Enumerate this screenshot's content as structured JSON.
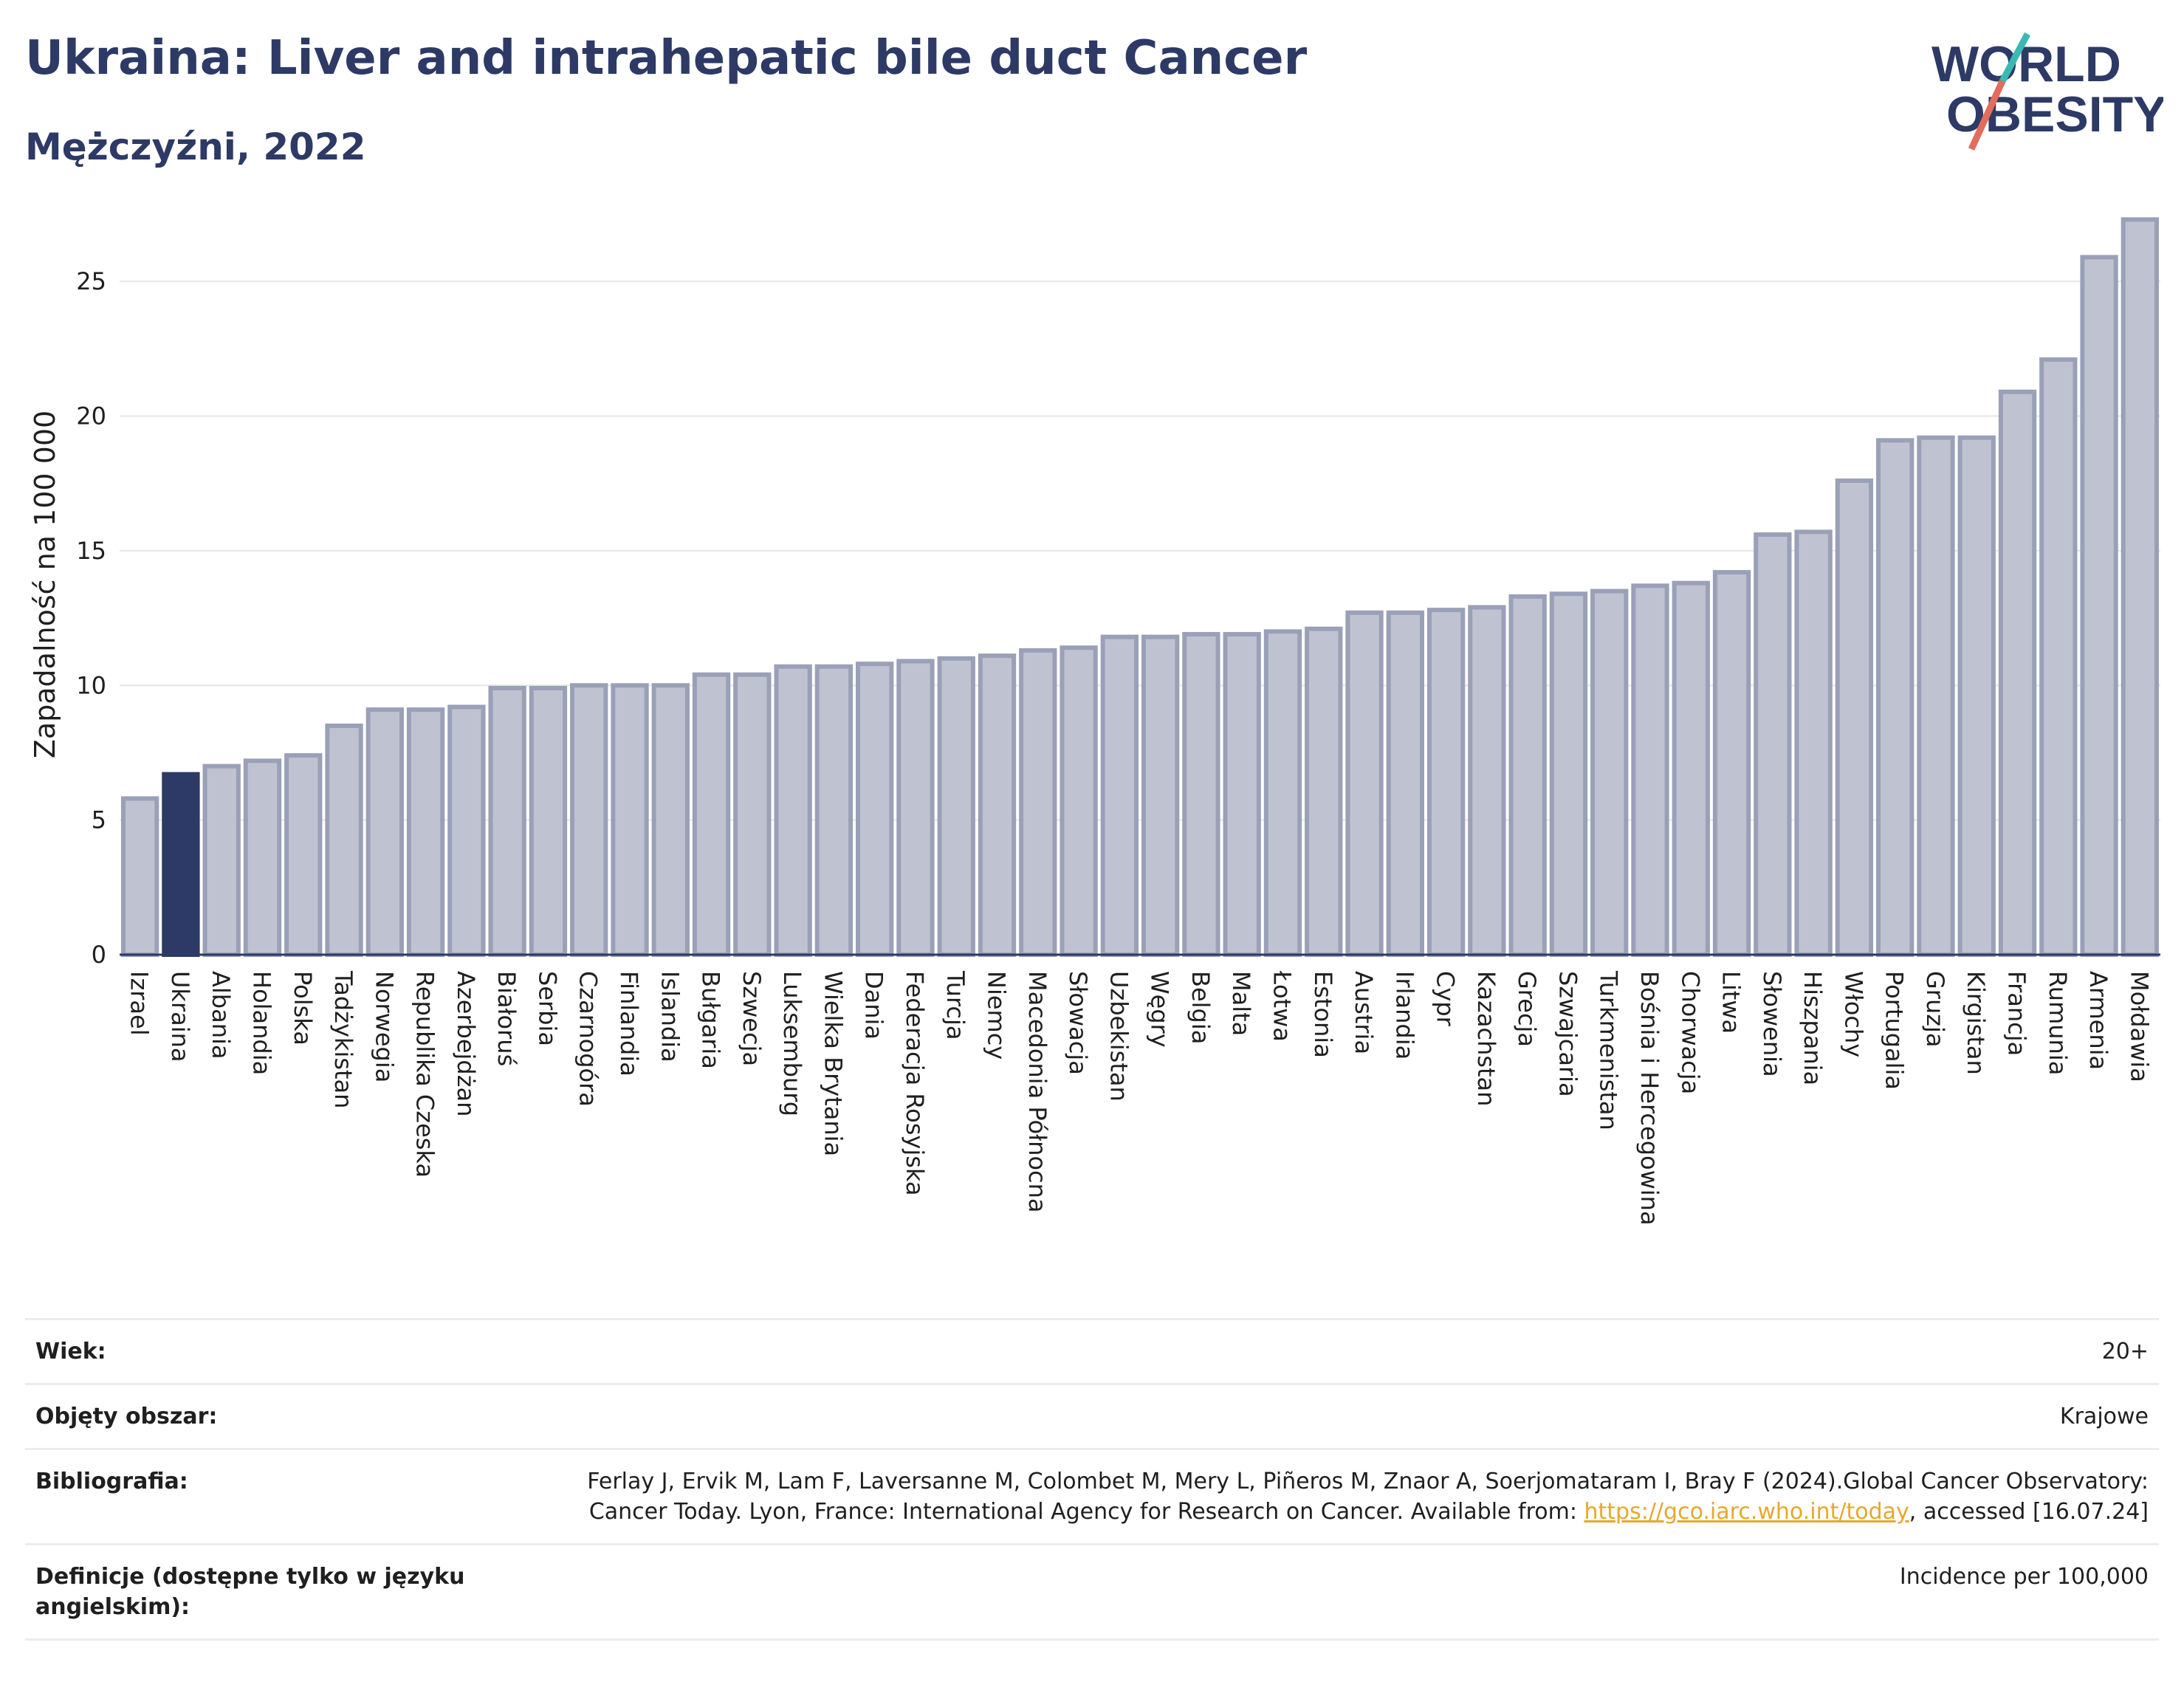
{
  "title": "Ukraina: Liver and intrahepatic bile duct Cancer",
  "subtitle": "Mężczyźni, 2022",
  "logo": {
    "line1": "WORLD",
    "line2": "OBESITY"
  },
  "colors": {
    "bar": "#bfc3d1",
    "bar_stroke": "#9aa0b7",
    "highlight": "#2d3a66",
    "title": "#2d3a66",
    "logo_teal": "#3bb8b4",
    "logo_red": "#e36c5b"
  },
  "chart_data": {
    "type": "bar",
    "ylabel": "Zapadalność na 100 000",
    "xlabel": "",
    "ylim": [
      0,
      27.5
    ],
    "yticks": [
      0,
      5,
      10,
      15,
      20,
      25
    ],
    "grid": true,
    "highlight": "Ukraina",
    "categories": [
      "Izrael",
      "Ukraina",
      "Albania",
      "Holandia",
      "Polska",
      "Tadżykistan",
      "Norwegia",
      "Republika Czeska",
      "Azerbejdżan",
      "Białoruś",
      "Serbia",
      "Czarnogóra",
      "Finlandia",
      "Islandia",
      "Bułgaria",
      "Szwecja",
      "Luksemburg",
      "Wielka Brytania",
      "Dania",
      "Federacja Rosyjska",
      "Turcja",
      "Niemcy",
      "Macedonia Północna",
      "Słowacja",
      "Uzbekistan",
      "Węgry",
      "Belgia",
      "Malta",
      "Łotwa",
      "Estonia",
      "Austria",
      "Irlandia",
      "Cypr",
      "Kazachstan",
      "Grecja",
      "Szwajcaria",
      "Turkmenistan",
      "Bośnia i Hercegowina",
      "Chorwacja",
      "Litwa",
      "Słowenia",
      "Hiszpania",
      "Włochy",
      "Portugalia",
      "Gruzja",
      "Kirgistan",
      "Francja",
      "Rumunia",
      "Armenia",
      "Mołdawia"
    ],
    "values": [
      5.8,
      6.7,
      7.0,
      7.2,
      7.4,
      8.5,
      9.1,
      9.1,
      9.2,
      9.9,
      9.9,
      10.0,
      10.0,
      10.0,
      10.4,
      10.4,
      10.7,
      10.7,
      10.8,
      10.9,
      11.0,
      11.1,
      11.3,
      11.4,
      11.8,
      11.8,
      11.9,
      11.9,
      12.0,
      12.1,
      12.7,
      12.7,
      12.8,
      12.9,
      13.3,
      13.4,
      13.5,
      13.7,
      13.8,
      14.2,
      15.6,
      15.7,
      17.6,
      19.1,
      19.2,
      19.2,
      20.9,
      22.1,
      25.9,
      27.3
    ]
  },
  "info": [
    {
      "label": "Wiek:",
      "value": "20+"
    },
    {
      "label": "Objęty obszar:",
      "value": "Krajowe"
    },
    {
      "label": "Bibliografia:",
      "value_before": "Ferlay J, Ervik M, Lam F, Laversanne M, Colombet M, Mery L, Piñeros M, Znaor A, Soerjomataram I, Bray F (2024).Global Cancer Observatory: Cancer Today. Lyon, France: International Agency for Research on Cancer. Available from: ",
      "link": "https://gco.iarc.who.int/today",
      "value_after": ", accessed [16.07.24]"
    },
    {
      "label": "Definicje (dostępne tylko w języku angielskim):",
      "value": "Incidence per 100,000"
    }
  ]
}
